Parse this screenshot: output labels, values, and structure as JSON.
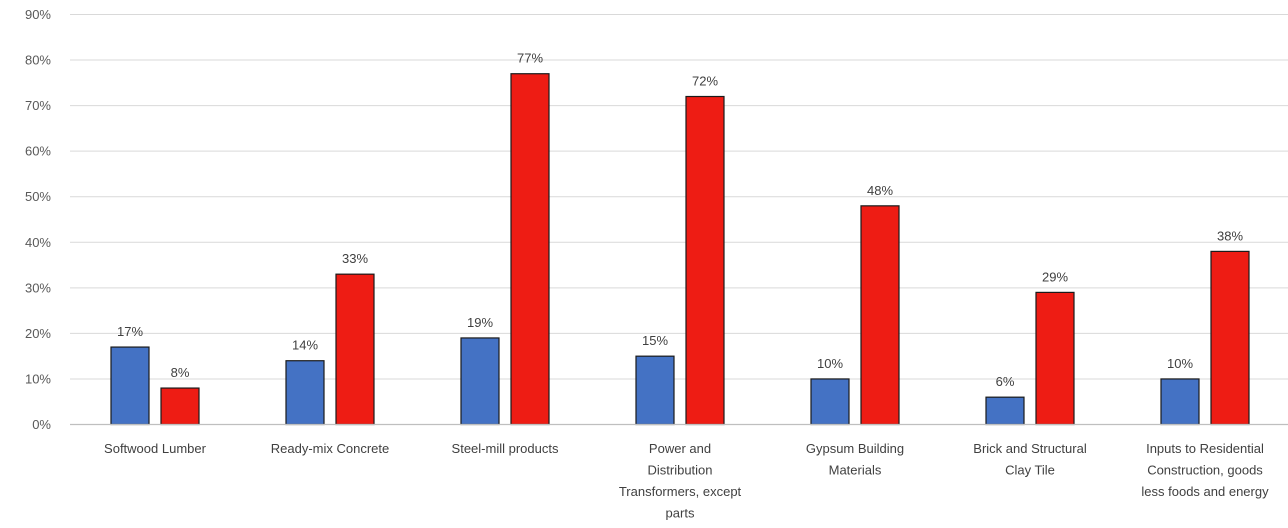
{
  "chart_data": {
    "type": "bar",
    "title": "",
    "xlabel": "",
    "ylabel": "",
    "ylim": [
      0,
      90
    ],
    "yticks": [
      "0%",
      "10%",
      "20%",
      "30%",
      "40%",
      "50%",
      "60%",
      "70%",
      "80%",
      "90%"
    ],
    "grid": true,
    "legend": "none",
    "categories": [
      [
        "Softwood Lumber"
      ],
      [
        "Ready-mix Concrete"
      ],
      [
        "Steel-mill products"
      ],
      [
        "Power and",
        "Distribution",
        "Transformers, except",
        "parts"
      ],
      [
        "Gypsum Building",
        "Materials"
      ],
      [
        "Brick and Structural",
        "Clay Tile"
      ],
      [
        "Inputs to Residential",
        "Construction, goods",
        "less foods and energy"
      ]
    ],
    "series": [
      {
        "values": [
          17,
          14,
          19,
          15,
          10,
          6,
          10
        ],
        "labels": [
          "17%",
          "14%",
          "19%",
          "15%",
          "10%",
          "6%",
          "10%"
        ],
        "color": "#4472C4"
      },
      {
        "values": [
          8,
          33,
          77,
          72,
          48,
          29,
          38
        ],
        "labels": [
          "8%",
          "33%",
          "77%",
          "72%",
          "48%",
          "29%",
          "38%"
        ],
        "color": "#EE1C14"
      }
    ]
  }
}
